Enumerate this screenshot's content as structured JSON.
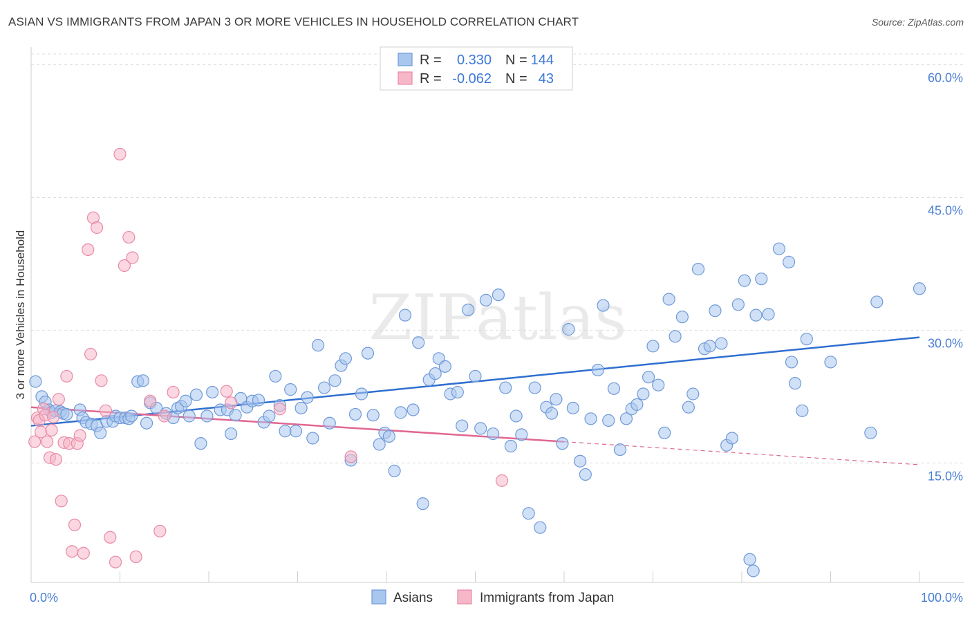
{
  "title": "ASIAN VS IMMIGRANTS FROM JAPAN 3 OR MORE VEHICLES IN HOUSEHOLD CORRELATION CHART",
  "source": "Source: ZipAtlas.com",
  "watermark": "ZIPatlas",
  "colors": {
    "asians_fill": "#a9c6ee",
    "asians_stroke": "#6f9ad8",
    "asians_line": "#2f6fd0",
    "japan_fill": "#f6b7c9",
    "japan_stroke": "#e88aa6",
    "japan_line": "#e06792",
    "tick_text": "#4a7fd4",
    "grid": "#dddddd"
  },
  "legend": {
    "rows": [
      {
        "r_label": "R =",
        "r_value": "0.330",
        "n_label": "N =",
        "n_value": "144"
      },
      {
        "r_label": "R =",
        "r_value": "-0.062",
        "n_label": "N =",
        "n_value": "43"
      }
    ]
  },
  "chart_data": {
    "type": "scatter",
    "title": "ASIAN VS IMMIGRANTS FROM JAPAN 3 OR MORE VEHICLES IN HOUSEHOLD CORRELATION CHART",
    "xlabel": "",
    "ylabel": "3 or more Vehicles in Household",
    "xlim": [
      0,
      100
    ],
    "ylim": [
      1.5,
      62
    ],
    "x_tick_labels": [
      "0.0%",
      "100.0%"
    ],
    "y_ticks": [
      15,
      30,
      45,
      60
    ],
    "y_tick_labels": [
      "15.0%",
      "30.0%",
      "45.0%",
      "60.0%"
    ],
    "grid": true,
    "legend_position": "top-center",
    "series": [
      {
        "name": "Asians",
        "trend": {
          "x": [
            0,
            100
          ],
          "y": [
            19.2,
            29.2
          ],
          "dashed_from": null
        },
        "points": [
          [
            0.5,
            24.2
          ],
          [
            1.2,
            22.5
          ],
          [
            1.6,
            21.9
          ],
          [
            2.0,
            21.0
          ],
          [
            2.3,
            20.7
          ],
          [
            2.7,
            20.9
          ],
          [
            3.3,
            20.8
          ],
          [
            3.6,
            20.6
          ],
          [
            4.0,
            20.5
          ],
          [
            5.5,
            21.0
          ],
          [
            5.8,
            20.1
          ],
          [
            6.2,
            19.6
          ],
          [
            6.8,
            19.4
          ],
          [
            7.4,
            19.2
          ],
          [
            7.8,
            18.4
          ],
          [
            8.5,
            19.7
          ],
          [
            9.2,
            19.7
          ],
          [
            9.5,
            20.3
          ],
          [
            10.0,
            20.1
          ],
          [
            10.6,
            20.1
          ],
          [
            11.0,
            20.0
          ],
          [
            11.3,
            20.3
          ],
          [
            12.0,
            24.2
          ],
          [
            12.6,
            24.3
          ],
          [
            13.0,
            19.5
          ],
          [
            13.4,
            21.8
          ],
          [
            14.1,
            21.2
          ],
          [
            15.2,
            20.6
          ],
          [
            16.0,
            20.1
          ],
          [
            16.5,
            21.2
          ],
          [
            16.9,
            21.4
          ],
          [
            17.4,
            22.0
          ],
          [
            17.8,
            20.3
          ],
          [
            18.6,
            22.7
          ],
          [
            19.1,
            17.2
          ],
          [
            19.8,
            20.3
          ],
          [
            20.4,
            23.0
          ],
          [
            21.3,
            21.0
          ],
          [
            22.1,
            21.0
          ],
          [
            22.5,
            18.3
          ],
          [
            23.0,
            20.4
          ],
          [
            23.6,
            22.3
          ],
          [
            24.3,
            21.3
          ],
          [
            24.9,
            22.0
          ],
          [
            25.6,
            22.1
          ],
          [
            26.2,
            19.6
          ],
          [
            26.8,
            20.3
          ],
          [
            27.5,
            24.8
          ],
          [
            28.0,
            21.5
          ],
          [
            28.6,
            18.6
          ],
          [
            29.2,
            23.3
          ],
          [
            29.8,
            18.6
          ],
          [
            30.4,
            21.2
          ],
          [
            31.1,
            22.4
          ],
          [
            31.7,
            17.8
          ],
          [
            32.3,
            28.3
          ],
          [
            33.0,
            23.5
          ],
          [
            33.6,
            19.5
          ],
          [
            34.2,
            24.3
          ],
          [
            34.9,
            26.0
          ],
          [
            35.4,
            26.8
          ],
          [
            36.0,
            15.3
          ],
          [
            36.5,
            20.5
          ],
          [
            37.2,
            22.8
          ],
          [
            37.9,
            27.4
          ],
          [
            38.5,
            20.4
          ],
          [
            39.2,
            17.1
          ],
          [
            39.8,
            18.4
          ],
          [
            40.3,
            18.0
          ],
          [
            40.9,
            14.1
          ],
          [
            41.6,
            20.7
          ],
          [
            42.1,
            31.7
          ],
          [
            43.0,
            21.0
          ],
          [
            43.6,
            28.6
          ],
          [
            44.1,
            10.4
          ],
          [
            44.8,
            24.4
          ],
          [
            45.5,
            25.1
          ],
          [
            45.9,
            26.8
          ],
          [
            46.6,
            25.9
          ],
          [
            47.2,
            22.8
          ],
          [
            48.0,
            23.0
          ],
          [
            48.5,
            19.2
          ],
          [
            49.2,
            32.3
          ],
          [
            50.0,
            24.8
          ],
          [
            50.6,
            18.9
          ],
          [
            51.2,
            33.4
          ],
          [
            52.0,
            18.3
          ],
          [
            52.6,
            34.0
          ],
          [
            53.4,
            23.5
          ],
          [
            54.0,
            16.9
          ],
          [
            54.6,
            20.3
          ],
          [
            55.2,
            18.2
          ],
          [
            56.0,
            9.3
          ],
          [
            56.7,
            23.5
          ],
          [
            57.3,
            7.7
          ],
          [
            58.0,
            21.3
          ],
          [
            58.6,
            20.6
          ],
          [
            59.1,
            22.2
          ],
          [
            59.8,
            17.2
          ],
          [
            60.5,
            30.1
          ],
          [
            61.0,
            21.2
          ],
          [
            61.8,
            15.2
          ],
          [
            62.4,
            13.7
          ],
          [
            63.0,
            20.0
          ],
          [
            63.8,
            25.5
          ],
          [
            64.4,
            32.8
          ],
          [
            65.0,
            19.8
          ],
          [
            65.6,
            23.4
          ],
          [
            66.3,
            16.5
          ],
          [
            67.0,
            20.0
          ],
          [
            67.6,
            21.1
          ],
          [
            68.2,
            21.6
          ],
          [
            68.9,
            22.8
          ],
          [
            69.5,
            24.7
          ],
          [
            70.0,
            28.2
          ],
          [
            70.6,
            23.8
          ],
          [
            71.3,
            18.4
          ],
          [
            71.8,
            33.5
          ],
          [
            72.5,
            29.3
          ],
          [
            73.3,
            31.5
          ],
          [
            74.0,
            21.3
          ],
          [
            74.5,
            22.8
          ],
          [
            75.1,
            36.9
          ],
          [
            75.8,
            27.9
          ],
          [
            76.4,
            28.2
          ],
          [
            77.0,
            32.2
          ],
          [
            77.7,
            28.5
          ],
          [
            78.3,
            17.0
          ],
          [
            78.9,
            17.8
          ],
          [
            79.6,
            32.9
          ],
          [
            80.3,
            35.6
          ],
          [
            80.9,
            4.1
          ],
          [
            81.3,
            2.8
          ],
          [
            81.6,
            31.7
          ],
          [
            82.2,
            35.8
          ],
          [
            83.0,
            31.8
          ],
          [
            84.2,
            39.2
          ],
          [
            85.3,
            37.7
          ],
          [
            85.6,
            26.4
          ],
          [
            86.0,
            24.0
          ],
          [
            86.8,
            20.9
          ],
          [
            87.3,
            29.0
          ],
          [
            90.0,
            26.4
          ],
          [
            94.5,
            18.4
          ],
          [
            95.2,
            33.2
          ],
          [
            100.0,
            34.7
          ]
        ]
      },
      {
        "name": "Immigrants from Japan",
        "trend": {
          "x": [
            0,
            100
          ],
          "y": [
            21.3,
            14.8
          ],
          "dashed_from": 60
        },
        "points": [
          [
            0.4,
            17.4
          ],
          [
            0.7,
            20.1
          ],
          [
            0.9,
            19.8
          ],
          [
            1.1,
            18.5
          ],
          [
            1.4,
            21.1
          ],
          [
            1.6,
            20.4
          ],
          [
            1.8,
            17.4
          ],
          [
            2.1,
            15.6
          ],
          [
            2.3,
            18.7
          ],
          [
            2.5,
            20.2
          ],
          [
            2.8,
            15.4
          ],
          [
            3.1,
            22.2
          ],
          [
            3.4,
            10.7
          ],
          [
            3.7,
            17.3
          ],
          [
            4.0,
            24.8
          ],
          [
            4.3,
            17.2
          ],
          [
            4.6,
            5.0
          ],
          [
            4.9,
            8.0
          ],
          [
            5.2,
            17.2
          ],
          [
            5.5,
            18.1
          ],
          [
            5.9,
            4.8
          ],
          [
            6.4,
            39.1
          ],
          [
            6.7,
            27.3
          ],
          [
            7.0,
            42.7
          ],
          [
            7.4,
            41.6
          ],
          [
            7.9,
            24.3
          ],
          [
            8.4,
            20.9
          ],
          [
            8.9,
            6.6
          ],
          [
            9.5,
            3.8
          ],
          [
            10.0,
            49.9
          ],
          [
            10.5,
            37.3
          ],
          [
            11.0,
            40.5
          ],
          [
            11.4,
            38.2
          ],
          [
            11.8,
            4.4
          ],
          [
            13.4,
            22.0
          ],
          [
            14.5,
            7.3
          ],
          [
            15.0,
            20.3
          ],
          [
            16.0,
            23.0
          ],
          [
            22.0,
            23.1
          ],
          [
            22.5,
            21.8
          ],
          [
            28.0,
            21.1
          ],
          [
            36.0,
            15.7
          ],
          [
            53.0,
            13.0
          ]
        ]
      }
    ]
  }
}
